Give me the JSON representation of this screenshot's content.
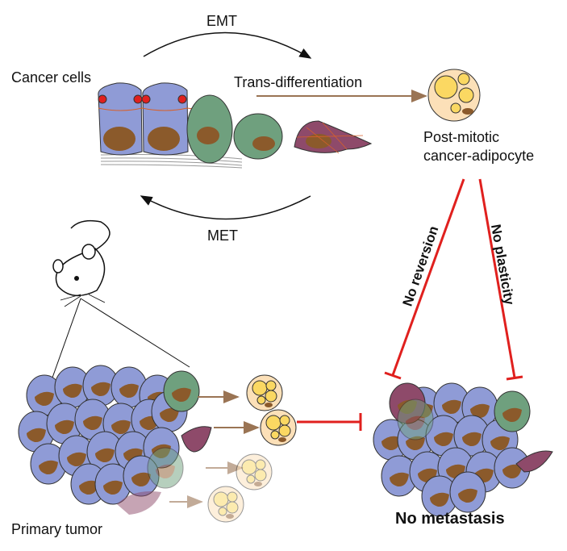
{
  "labels": {
    "emt": "EMT",
    "cancer_cells": "Cancer cells",
    "trans_differentiation": "Trans-differentiation",
    "post_mitotic_line1": "Post-mitotic",
    "post_mitotic_line2": "cancer-adipocyte",
    "met": "MET",
    "no_reversion": "No reversion",
    "no_plasticity": "No plasticity",
    "primary_tumor": "Primary tumor",
    "no_metastasis": "No metastasis"
  },
  "colors": {
    "epithelial_cell": "#8f9bd6",
    "mesenchymal_cell": "#6fa07e",
    "migratory_cell": "#8e4a6a",
    "nucleus": "#8b5a2b",
    "adipocyte": "#fce0b8",
    "lipid_droplet": "#fbd862",
    "inhibition": "#e0201e",
    "arrow_brown": "#9a7454"
  }
}
